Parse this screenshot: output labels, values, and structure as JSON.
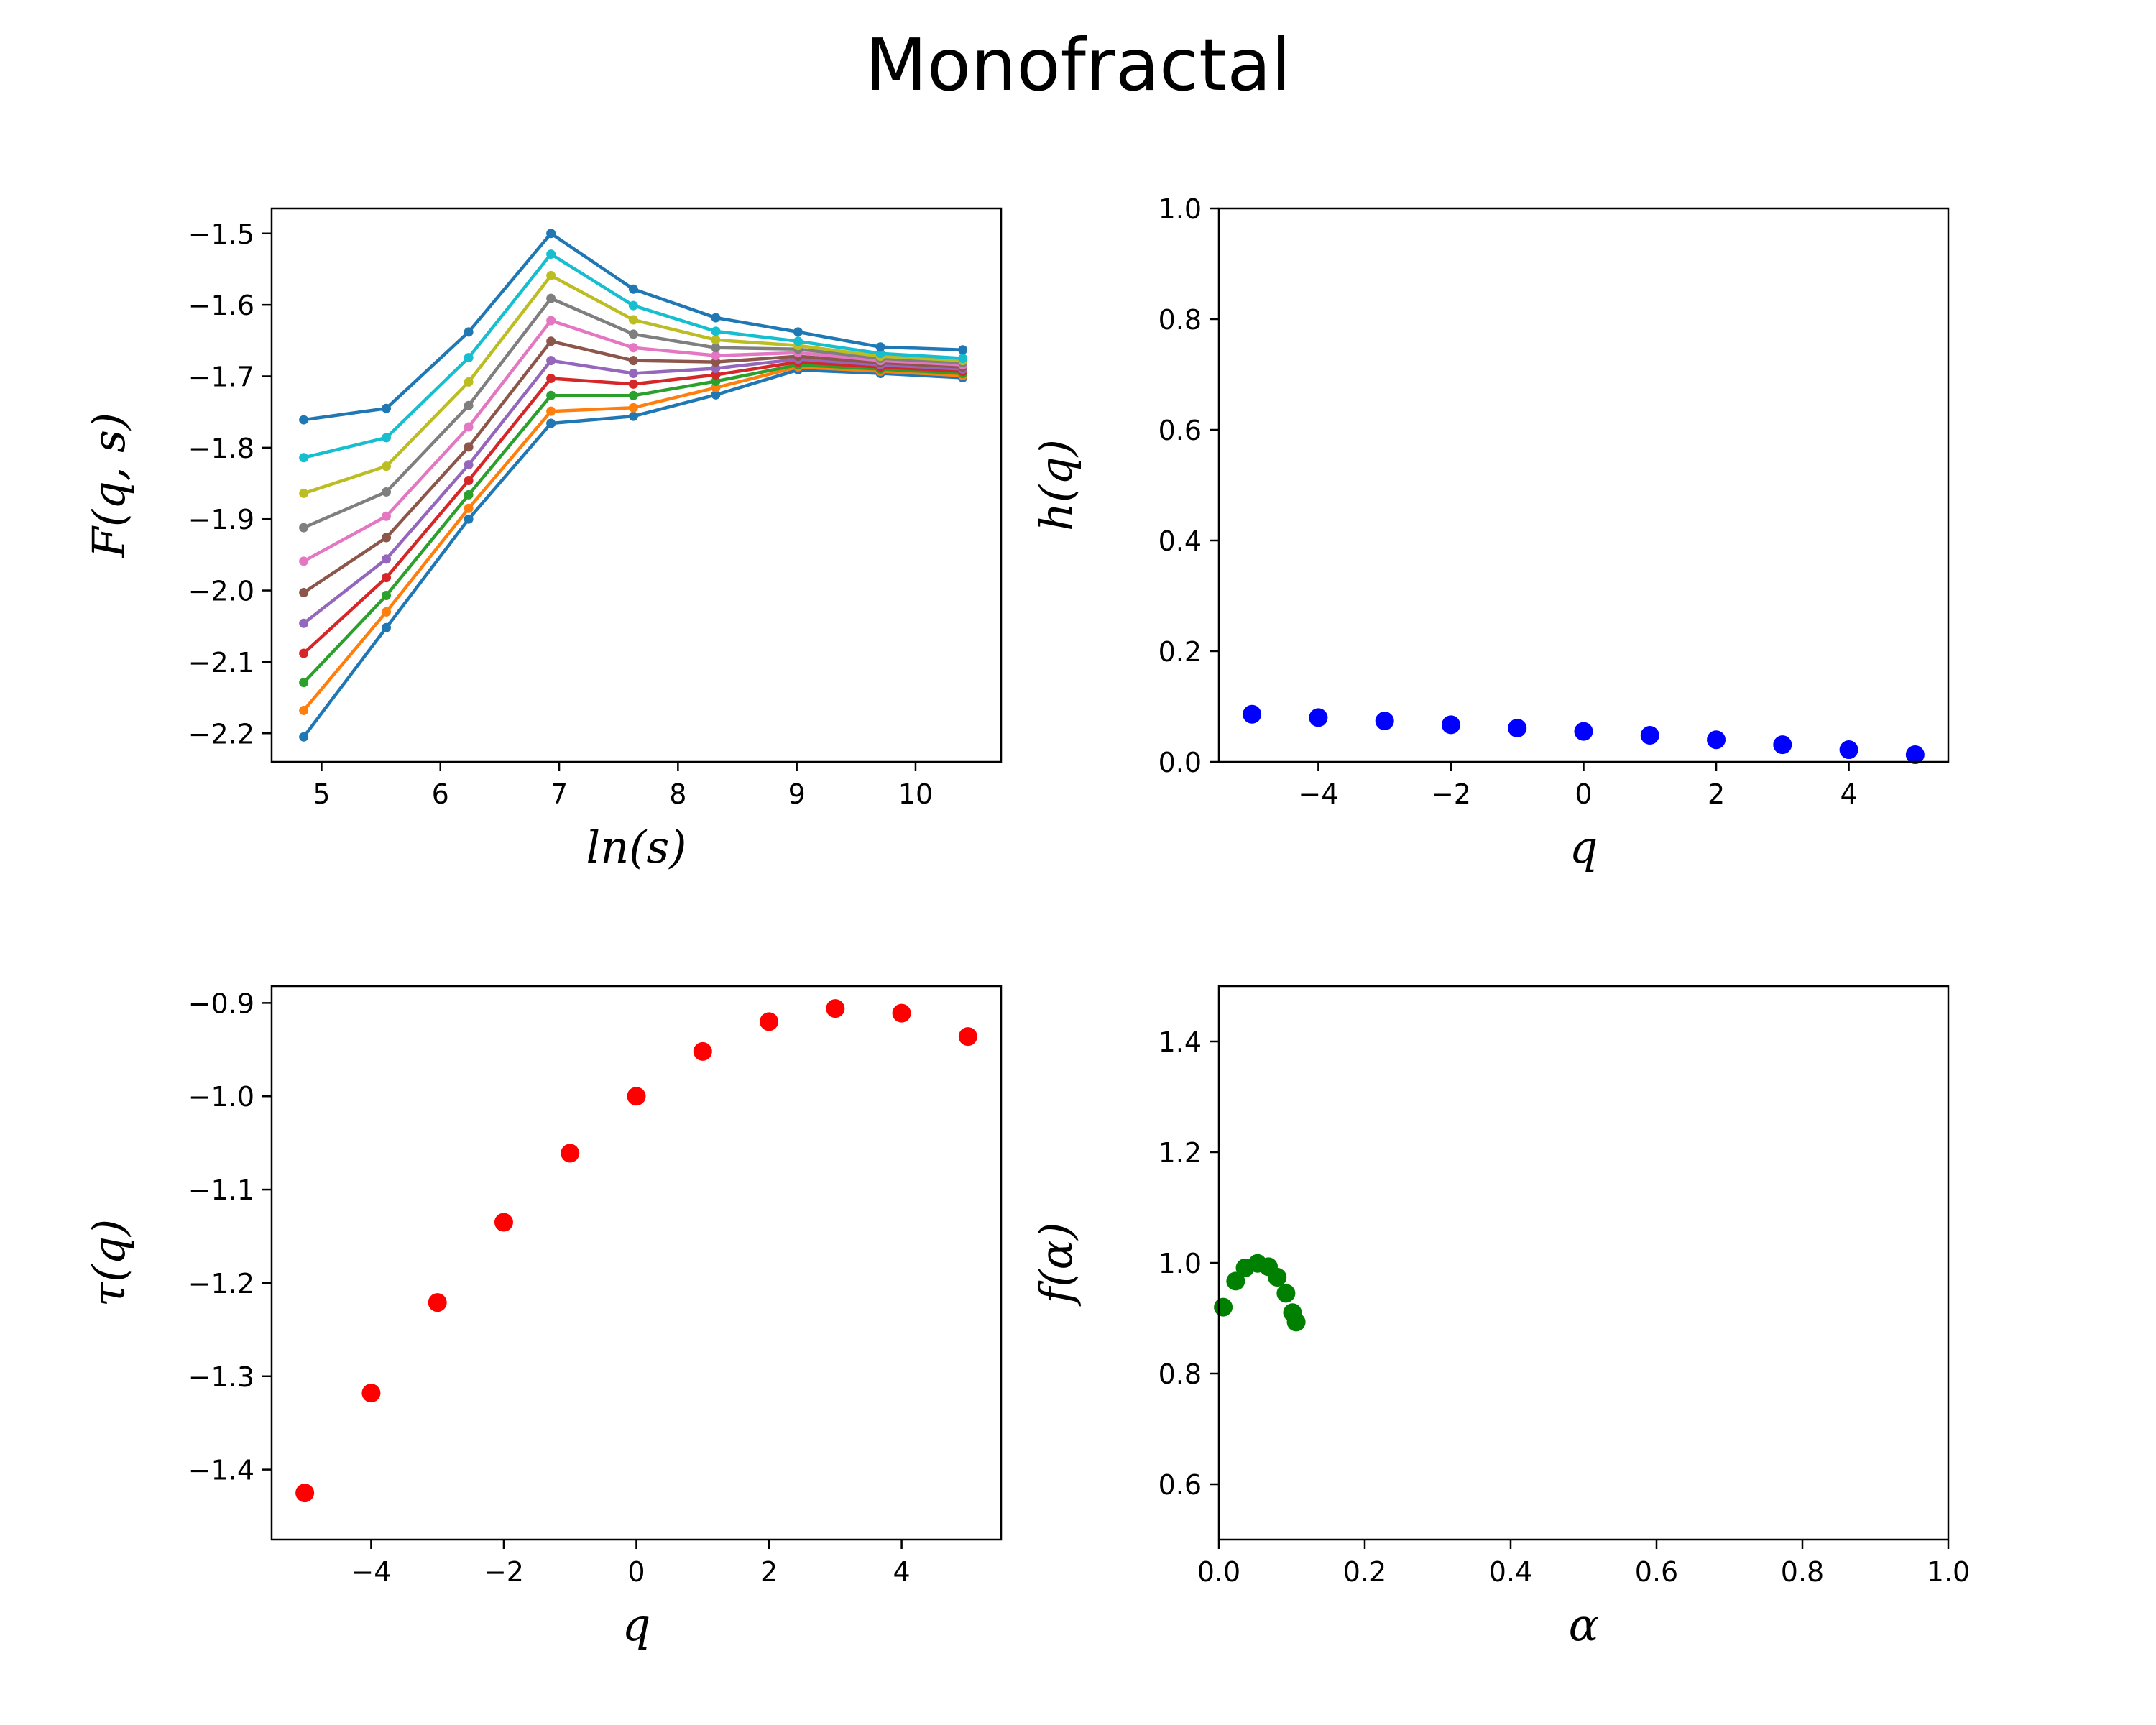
{
  "suptitle": "Monofractal",
  "chart_data": [
    {
      "type": "line",
      "id": "fqs",
      "xlabel": "ln(s)",
      "ylabel": "F(q, s)",
      "xlim": [
        4.58,
        10.72
      ],
      "ylim": [
        -2.24,
        -1.465
      ],
      "xticks": [
        5,
        6,
        7,
        8,
        9,
        10
      ],
      "xtick_labels": [
        "5",
        "6",
        "7",
        "8",
        "9",
        "10"
      ],
      "yticks": [
        -2.2,
        -2.1,
        -2.0,
        -1.9,
        -1.8,
        -1.7,
        -1.6,
        -1.5
      ],
      "ytick_labels": [
        "−2.2",
        "−2.1",
        "−2.0",
        "−1.9",
        "−1.8",
        "−1.7",
        "−1.6",
        "−1.5"
      ],
      "x": [
        4.85,
        5.545,
        6.238,
        6.931,
        7.625,
        8.318,
        9.011,
        9.704,
        10.397
      ],
      "series": [
        {
          "color": "#1f77b4",
          "values": [
            -2.205,
            -2.052,
            -1.9,
            -1.766,
            -1.756,
            -1.726,
            -1.691,
            -1.696,
            -1.702
          ]
        },
        {
          "color": "#ff7f0e",
          "values": [
            -2.168,
            -2.03,
            -1.885,
            -1.749,
            -1.744,
            -1.716,
            -1.687,
            -1.693,
            -1.699
          ]
        },
        {
          "color": "#2ca02c",
          "values": [
            -2.129,
            -2.007,
            -1.866,
            -1.727,
            -1.727,
            -1.707,
            -1.684,
            -1.69,
            -1.696
          ]
        },
        {
          "color": "#d62728",
          "values": [
            -2.088,
            -1.982,
            -1.846,
            -1.703,
            -1.711,
            -1.698,
            -1.68,
            -1.687,
            -1.693
          ]
        },
        {
          "color": "#9467bd",
          "values": [
            -2.046,
            -1.956,
            -1.824,
            -1.678,
            -1.696,
            -1.689,
            -1.676,
            -1.684,
            -1.69
          ]
        },
        {
          "color": "#8c564b",
          "values": [
            -2.003,
            -1.926,
            -1.799,
            -1.651,
            -1.678,
            -1.68,
            -1.672,
            -1.681,
            -1.687
          ]
        },
        {
          "color": "#e377c2",
          "values": [
            -1.959,
            -1.896,
            -1.771,
            -1.622,
            -1.66,
            -1.671,
            -1.667,
            -1.678,
            -1.684
          ]
        },
        {
          "color": "#7f7f7f",
          "values": [
            -1.912,
            -1.862,
            -1.741,
            -1.591,
            -1.641,
            -1.66,
            -1.662,
            -1.675,
            -1.681
          ]
        },
        {
          "color": "#bcbd22",
          "values": [
            -1.864,
            -1.826,
            -1.708,
            -1.559,
            -1.621,
            -1.649,
            -1.657,
            -1.672,
            -1.678
          ]
        },
        {
          "color": "#17becf",
          "values": [
            -1.814,
            -1.786,
            -1.674,
            -1.529,
            -1.601,
            -1.637,
            -1.651,
            -1.668,
            -1.675
          ]
        },
        {
          "color": "#1f77b4",
          "values": [
            -1.761,
            -1.745,
            -1.638,
            -1.5,
            -1.578,
            -1.618,
            -1.638,
            -1.659,
            -1.663
          ]
        }
      ]
    },
    {
      "type": "scatter",
      "id": "hq",
      "xlabel": "q",
      "ylabel": "h(q)",
      "color": "#0000ff",
      "xlim": [
        -5.5,
        5.5
      ],
      "ylim": [
        0.0,
        1.0
      ],
      "xticks": [
        -4,
        -2,
        0,
        2,
        4
      ],
      "xtick_labels": [
        "−4",
        "−2",
        "0",
        "2",
        "4"
      ],
      "yticks": [
        0.0,
        0.2,
        0.4,
        0.6,
        0.8,
        1.0
      ],
      "ytick_labels": [
        "0.0",
        "0.2",
        "0.4",
        "0.6",
        "0.8",
        "1.0"
      ],
      "x": [
        -5,
        -4,
        -3,
        -2,
        -1,
        0,
        1,
        2,
        3,
        4,
        5
      ],
      "y": [
        0.086,
        0.08,
        0.074,
        0.067,
        0.061,
        0.055,
        0.048,
        0.04,
        0.031,
        0.022,
        0.013
      ]
    },
    {
      "type": "scatter",
      "id": "tauq",
      "xlabel": "q",
      "ylabel": "τ(q)",
      "color": "#ff0000",
      "xlim": [
        -5.5,
        5.5
      ],
      "ylim": [
        -1.475,
        -0.882
      ],
      "xticks": [
        -4,
        -2,
        0,
        2,
        4
      ],
      "xtick_labels": [
        "−4",
        "−2",
        "0",
        "2",
        "4"
      ],
      "yticks": [
        -1.4,
        -1.3,
        -1.2,
        -1.1,
        -1.0,
        -0.9
      ],
      "ytick_labels": [
        "−1.4",
        "−1.3",
        "−1.2",
        "−1.1",
        "−1.0",
        "−0.9"
      ],
      "x": [
        -5,
        -4,
        -3,
        -2,
        -1,
        0,
        1,
        2,
        3,
        4,
        5
      ],
      "y": [
        -1.425,
        -1.318,
        -1.221,
        -1.135,
        -1.061,
        -1.0,
        -0.952,
        -0.92,
        -0.906,
        -0.911,
        -0.936
      ]
    },
    {
      "type": "scatter",
      "id": "falpha",
      "xlabel": "α",
      "ylabel": "f(α)",
      "color": "#008000",
      "xlim": [
        0.0,
        1.0
      ],
      "ylim": [
        0.5,
        1.5
      ],
      "xticks": [
        0.0,
        0.2,
        0.4,
        0.6,
        0.8,
        1.0
      ],
      "xtick_labels": [
        "0.0",
        "0.2",
        "0.4",
        "0.6",
        "0.8",
        "1.0"
      ],
      "yticks": [
        0.6,
        0.8,
        1.0,
        1.2,
        1.4
      ],
      "ytick_labels": [
        "0.6",
        "0.8",
        "1.0",
        "1.2",
        "1.4"
      ],
      "x": [
        0.006,
        0.023,
        0.036,
        0.053,
        0.068,
        0.08,
        0.092,
        0.101,
        0.106
      ],
      "y": [
        0.92,
        0.967,
        0.991,
        0.999,
        0.993,
        0.974,
        0.945,
        0.91,
        0.893
      ]
    }
  ]
}
